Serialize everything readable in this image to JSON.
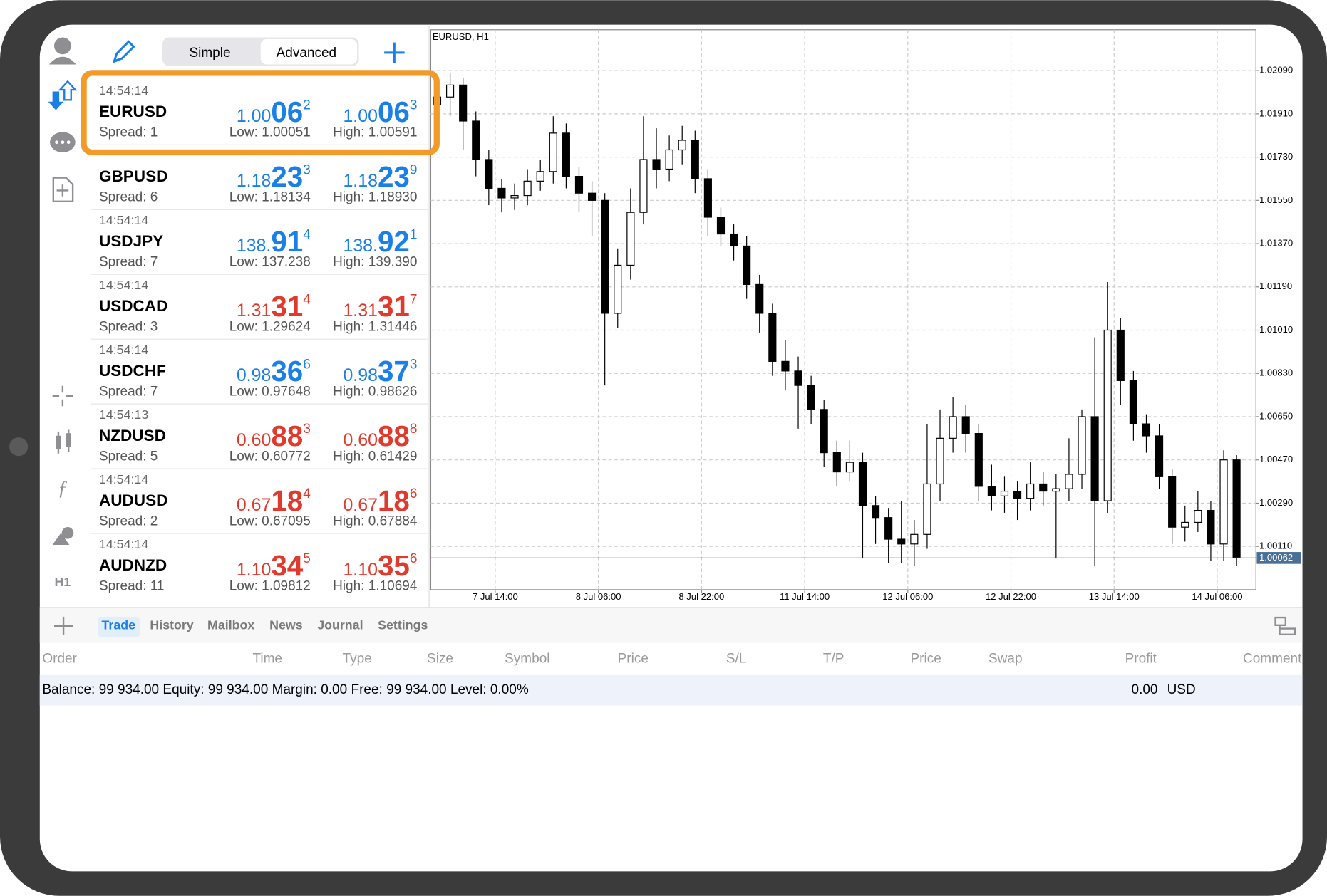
{
  "toolbar": {
    "tabs": [
      "Simple",
      "Advanced"
    ]
  },
  "quotes": [
    {
      "time": "14:54:14",
      "symbol": "EURUSD",
      "bid": [
        "1.00",
        "06",
        "2"
      ],
      "ask": [
        "1.00",
        "06",
        "3"
      ],
      "low": "Low: 1.00051",
      "high": "High: 1.00591",
      "spread": "Spread: 1",
      "color": "#1a7fe6"
    },
    {
      "symbol": "GBPUSD",
      "bid": [
        "1.18",
        "23",
        "3"
      ],
      "ask": [
        "1.18",
        "23",
        "9"
      ],
      "low": "Low: 1.18134",
      "high": "High: 1.18930",
      "spread": "Spread: 6",
      "color": "#1a7fe6"
    },
    {
      "time": "14:54:14",
      "symbol": "USDJPY",
      "bid": [
        "138.",
        "91",
        "4"
      ],
      "ask": [
        "138.",
        "92",
        "1"
      ],
      "low": "Low: 137.238",
      "high": "High: 139.390",
      "spread": "Spread: 7",
      "color": "#1a7fe6"
    },
    {
      "time": "14:54:14",
      "symbol": "USDCAD",
      "bid": [
        "1.31",
        "31",
        "4"
      ],
      "ask": [
        "1.31",
        "31",
        "7"
      ],
      "low": "Low: 1.29624",
      "high": "High: 1.31446",
      "spread": "Spread: 3",
      "color": "#e03a2e"
    },
    {
      "time": "14:54:14",
      "symbol": "USDCHF",
      "bid": [
        "0.98",
        "36",
        "6"
      ],
      "ask": [
        "0.98",
        "37",
        "3"
      ],
      "low": "Low: 0.97648",
      "high": "High: 0.98626",
      "spread": "Spread: 7",
      "color": "#1a7fe6"
    },
    {
      "time": "14:54:13",
      "symbol": "NZDUSD",
      "bid": [
        "0.60",
        "88",
        "3"
      ],
      "ask": [
        "0.60",
        "88",
        "8"
      ],
      "low": "Low: 0.60772",
      "high": "High: 0.61429",
      "spread": "Spread: 5",
      "color": "#e03a2e"
    },
    {
      "time": "14:54:14",
      "symbol": "AUDUSD",
      "bid": [
        "0.67",
        "18",
        "4"
      ],
      "ask": [
        "0.67",
        "18",
        "6"
      ],
      "low": "Low: 0.67095",
      "high": "High: 0.67884",
      "spread": "Spread: 2",
      "color": "#e03a2e"
    },
    {
      "time": "14:54:14",
      "symbol": "AUDNZD",
      "bid": [
        "1.10",
        "34",
        "5"
      ],
      "ask": [
        "1.10",
        "35",
        "6"
      ],
      "low": "Low: 1.09812",
      "high": "High: 1.10694",
      "spread": "Spread: 11",
      "color": "#e03a2e"
    }
  ],
  "sidebar": {
    "timeframe": "H1"
  },
  "chart_data": {
    "type": "candlestick",
    "title": "EURUSD, H1",
    "xlim": [
      0,
      128
    ],
    "xticks": [
      {
        "value": 10,
        "label": "7 Jul 14:00"
      },
      {
        "value": 26,
        "label": "8 Jul 06:00"
      },
      {
        "value": 42,
        "label": "8 Jul 22:00"
      },
      {
        "value": 58,
        "label": "11 Jul 14:00"
      },
      {
        "value": 74,
        "label": "12 Jul 06:00"
      },
      {
        "value": 90,
        "label": "12 Jul 22:00"
      },
      {
        "value": 106,
        "label": "13 Jul 14:00"
      },
      {
        "value": 122,
        "label": "14 Jul 06:00"
      }
    ],
    "ylim": [
      0.9993,
      1.0226
    ],
    "yticks": [
      {
        "value": 1.0011,
        "label": "1.00110"
      },
      {
        "value": 1.0029,
        "label": "1.00290"
      },
      {
        "value": 1.0047,
        "label": "1.00470"
      },
      {
        "value": 1.0065,
        "label": "1.00650"
      },
      {
        "value": 1.0083,
        "label": "1.00830"
      },
      {
        "value": 1.0101,
        "label": "1.01010"
      },
      {
        "value": 1.0119,
        "label": "1.01190"
      },
      {
        "value": 1.0137,
        "label": "1.01370"
      },
      {
        "value": 1.0155,
        "label": "1.01550"
      },
      {
        "value": 1.0173,
        "label": "1.01730"
      },
      {
        "value": 1.0191,
        "label": "1.01910"
      },
      {
        "value": 1.0209,
        "label": "1.02090"
      }
    ],
    "grid": true,
    "last_price": {
      "value": 1.00062,
      "label": "1.00062"
    },
    "x": [
      1,
      3,
      5,
      7,
      9,
      11,
      13,
      15,
      17,
      19,
      21,
      23,
      25,
      27,
      29,
      31,
      33,
      35,
      37,
      39,
      41,
      43,
      45,
      47,
      49,
      51,
      53,
      55,
      57,
      59,
      61,
      63,
      65,
      67,
      69,
      71,
      73,
      75,
      77,
      79,
      81,
      83,
      85,
      87,
      89,
      91,
      93,
      95,
      97,
      99,
      101,
      103,
      105,
      107,
      109,
      111,
      113,
      115,
      117,
      119,
      121,
      123,
      125
    ],
    "open": [
      1.0195,
      1.0198,
      1.0203,
      1.0188,
      1.0172,
      1.016,
      1.0156,
      1.0157,
      1.0163,
      1.0167,
      1.0183,
      1.0165,
      1.0158,
      1.0155,
      1.0108,
      1.0128,
      1.015,
      1.0172,
      1.0168,
      1.0176,
      1.018,
      1.0164,
      1.0148,
      1.0141,
      1.0136,
      1.012,
      1.0108,
      1.0088,
      1.0084,
      1.0078,
      1.0068,
      1.005,
      1.0042,
      1.0046,
      1.0028,
      1.0023,
      1.0014,
      1.0012,
      1.0016,
      1.0037,
      1.0056,
      1.0065,
      1.0058,
      1.0036,
      1.0032,
      1.0034,
      1.0031,
      1.0037,
      1.0034,
      1.0035,
      1.0041,
      1.0065,
      1.003,
      1.0101,
      1.008,
      1.0062,
      1.0057,
      1.004,
      1.0019,
      1.0021,
      1.0026,
      1.0012,
      1.0047
    ],
    "high": [
      1.0207,
      1.0208,
      1.0206,
      1.0192,
      1.0176,
      1.0164,
      1.0162,
      1.0168,
      1.0172,
      1.019,
      1.0187,
      1.0169,
      1.0163,
      1.0158,
      1.0135,
      1.016,
      1.019,
      1.0185,
      1.0182,
      1.0186,
      1.0184,
      1.0168,
      1.0152,
      1.0145,
      1.014,
      1.0124,
      1.0112,
      1.0097,
      1.009,
      1.0082,
      1.0072,
      1.0055,
      1.0055,
      1.005,
      1.0032,
      1.0027,
      1.003,
      1.0022,
      1.0062,
      1.0068,
      1.0073,
      1.007,
      1.0062,
      1.0045,
      1.004,
      1.0038,
      1.0046,
      1.0042,
      1.0041,
      1.0056,
      1.0068,
      1.0098,
      1.0121,
      1.0106,
      1.0084,
      1.0066,
      1.0062,
      1.0043,
      1.0028,
      1.0034,
      1.003,
      1.0051,
      1.0049
    ],
    "low": [
      1.018,
      1.019,
      1.0176,
      1.0165,
      1.0153,
      1.015,
      1.0151,
      1.0153,
      1.0159,
      1.0162,
      1.016,
      1.015,
      1.014,
      1.0078,
      1.0102,
      1.0122,
      1.0145,
      1.016,
      1.0163,
      1.017,
      1.0158,
      1.014,
      1.0136,
      1.013,
      1.0114,
      1.01,
      1.0082,
      1.0076,
      1.006,
      1.0062,
      1.0044,
      1.0036,
      1.0038,
      1.0006,
      1.0012,
      1.0004,
      1.0004,
      1.0003,
      1.001,
      1.003,
      1.005,
      1.005,
      1.003,
      1.0026,
      1.0025,
      1.0022,
      1.0026,
      1.0028,
      1.0006,
      1.003,
      1.0035,
      1.0003,
      1.0025,
      1.007,
      1.0055,
      1.005,
      1.0035,
      1.0012,
      1.0013,
      1.0017,
      1.0005,
      1.0005,
      1.0003
    ],
    "close": [
      1.0198,
      1.0203,
      1.0188,
      1.0172,
      1.016,
      1.0156,
      1.0157,
      1.0163,
      1.0167,
      1.0183,
      1.0165,
      1.0158,
      1.0155,
      1.0108,
      1.0128,
      1.015,
      1.0172,
      1.0168,
      1.0176,
      1.018,
      1.0164,
      1.0148,
      1.0141,
      1.0136,
      1.012,
      1.0108,
      1.0088,
      1.0084,
      1.0078,
      1.0068,
      1.005,
      1.0042,
      1.0046,
      1.0028,
      1.0023,
      1.0014,
      1.0012,
      1.0016,
      1.0037,
      1.0056,
      1.0065,
      1.0058,
      1.0036,
      1.0032,
      1.0034,
      1.0031,
      1.0037,
      1.0034,
      1.0035,
      1.0041,
      1.0065,
      1.003,
      1.0101,
      1.008,
      1.0062,
      1.0057,
      1.004,
      1.0019,
      1.0021,
      1.0026,
      1.0012,
      1.0047,
      1.00062
    ]
  },
  "panel": {
    "tabs": [
      "Trade",
      "History",
      "Mailbox",
      "News",
      "Journal",
      "Settings"
    ],
    "columns": [
      "Order",
      "Time",
      "Type",
      "Size",
      "Symbol",
      "Price",
      "S/L",
      "T/P",
      "Price",
      "Swap",
      "Profit",
      "Comment"
    ],
    "summary": "Balance: 99 934.00 Equity: 99 934.00 Margin: 0.00 Free: 99 934.00 Level: 0.00%",
    "profit": "0.00",
    "currency": "USD"
  }
}
